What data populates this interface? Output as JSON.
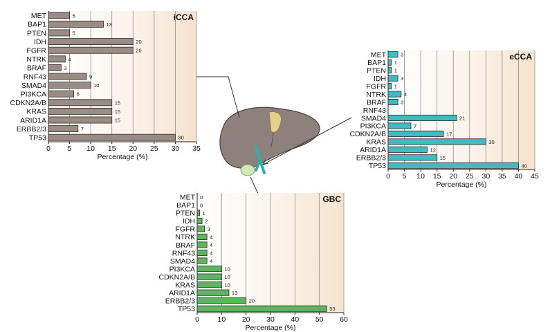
{
  "chart_data": [
    {
      "type": "bar",
      "orientation": "horizontal",
      "title": "iCCA",
      "xlabel": "Percentage (%)",
      "xlim": [
        0,
        35
      ],
      "xticks": [
        0,
        5,
        10,
        15,
        20,
        25,
        30,
        35
      ],
      "color": "#9b8b85",
      "categories": [
        "MET",
        "BAP1",
        "PTEN",
        "IDH",
        "FGFR",
        "NTRK",
        "BRAF",
        "RNF43",
        "SMAD4",
        "PI3KCA",
        "CDKN2A/B",
        "KRAS",
        "ARID1A",
        "ERBB2/3",
        "TP53"
      ],
      "values": [
        5,
        13,
        5,
        20,
        20,
        4,
        3,
        9,
        10,
        6,
        15,
        15,
        15,
        7,
        30
      ]
    },
    {
      "type": "bar",
      "orientation": "horizontal",
      "title": "eCCA",
      "xlabel": "Percentage (%)",
      "xlim": [
        0,
        45
      ],
      "xticks": [
        0,
        5,
        10,
        15,
        20,
        25,
        30,
        35,
        40,
        45
      ],
      "color": "#3fbcbf",
      "categories": [
        "MET",
        "BAP1",
        "PTEN",
        "IDH",
        "FGFR",
        "NTRK",
        "BRAF",
        "RNF43",
        "SMAD4",
        "PI3KCA",
        "CDKN2A/B",
        "KRAS",
        "ARID1A",
        "ERBB2/3",
        "TP53"
      ],
      "values": [
        3,
        1,
        1,
        3,
        1,
        4,
        3,
        null,
        21,
        7,
        17,
        30,
        12,
        15,
        40
      ]
    },
    {
      "type": "bar",
      "orientation": "horizontal",
      "title": "GBC",
      "xlabel": "Percentage (%)",
      "xlim": [
        0,
        60
      ],
      "xticks": [
        0,
        10,
        20,
        30,
        40,
        50,
        60
      ],
      "color": "#5db55d",
      "categories": [
        "MET",
        "BAP1",
        "PTEN",
        "IDH",
        "FGFR",
        "NTRK",
        "BRAF",
        "RNF43",
        "SMAD4",
        "PI3KCA",
        "CDKN2A/B",
        "KRAS",
        "ARID1A",
        "ERBB2/3",
        "TP53"
      ],
      "values": [
        0,
        0,
        1,
        2,
        3,
        4,
        4,
        4,
        4,
        10,
        10,
        10,
        13,
        20,
        53
      ]
    }
  ]
}
